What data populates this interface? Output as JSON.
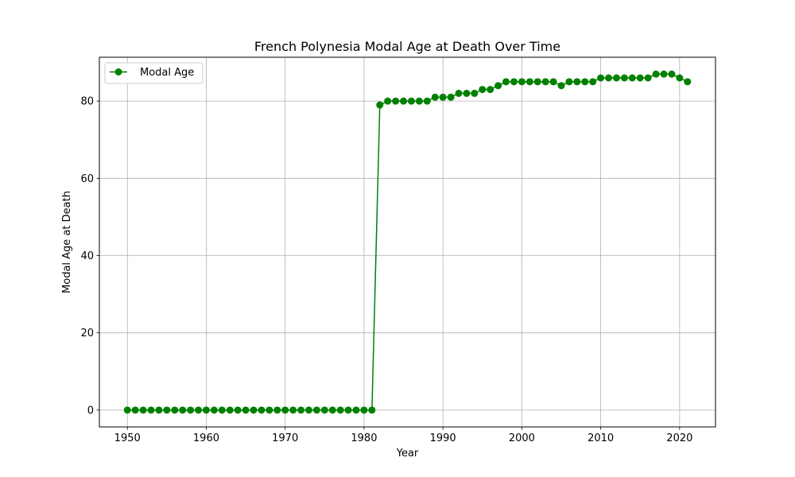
{
  "chart_data": {
    "type": "line",
    "title": "French Polynesia Modal Age at Death Over Time",
    "xlabel": "Year",
    "ylabel": "Modal Age at Death",
    "xlim": [
      1946.45,
      2024.55
    ],
    "ylim": [
      -4.35,
      91.35
    ],
    "xticks": [
      1950,
      1960,
      1970,
      1980,
      1990,
      2000,
      2010,
      2020
    ],
    "yticks": [
      0,
      20,
      40,
      60,
      80
    ],
    "grid": true,
    "legend_position": "top-left",
    "series": [
      {
        "name": "Modal Age",
        "color": "#008000",
        "marker": "circle",
        "x": [
          1950,
          1951,
          1952,
          1953,
          1954,
          1955,
          1956,
          1957,
          1958,
          1959,
          1960,
          1961,
          1962,
          1963,
          1964,
          1965,
          1966,
          1967,
          1968,
          1969,
          1970,
          1971,
          1972,
          1973,
          1974,
          1975,
          1976,
          1977,
          1978,
          1979,
          1980,
          1981,
          1982,
          1983,
          1984,
          1985,
          1986,
          1987,
          1988,
          1989,
          1990,
          1991,
          1992,
          1993,
          1994,
          1995,
          1996,
          1997,
          1998,
          1999,
          2000,
          2001,
          2002,
          2003,
          2004,
          2005,
          2006,
          2007,
          2008,
          2009,
          2010,
          2011,
          2012,
          2013,
          2014,
          2015,
          2016,
          2017,
          2018,
          2019,
          2020,
          2021
        ],
        "values": [
          0,
          0,
          0,
          0,
          0,
          0,
          0,
          0,
          0,
          0,
          0,
          0,
          0,
          0,
          0,
          0,
          0,
          0,
          0,
          0,
          0,
          0,
          0,
          0,
          0,
          0,
          0,
          0,
          0,
          0,
          0,
          0,
          79,
          80,
          80,
          80,
          80,
          80,
          80,
          81,
          81,
          81,
          82,
          82,
          82,
          83,
          83,
          84,
          85,
          85,
          85,
          85,
          85,
          85,
          85,
          84,
          85,
          85,
          85,
          85,
          86,
          86,
          86,
          86,
          86,
          86,
          86,
          87,
          87,
          87,
          86,
          85
        ]
      }
    ]
  }
}
